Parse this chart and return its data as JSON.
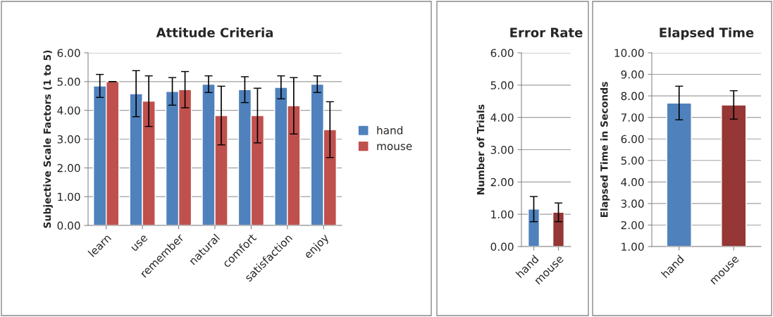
{
  "chart_data": [
    {
      "type": "bar",
      "title": "Attitude Criteria",
      "ylabel": "Subjective Scale Factors (1 to 5)",
      "categories": [
        "learn",
        "use",
        "remember",
        "natural",
        "comfort",
        "satisfaction",
        "enjoy"
      ],
      "series": [
        {
          "name": "hand",
          "color": "#4f81bd",
          "values": [
            4.85,
            4.58,
            4.66,
            4.91,
            4.72,
            4.8,
            4.91
          ],
          "errors": [
            0.4,
            0.8,
            0.48,
            0.29,
            0.45,
            0.4,
            0.29
          ]
        },
        {
          "name": "mouse",
          "color": "#c0504d",
          "values": [
            5.0,
            4.32,
            4.72,
            3.82,
            3.82,
            4.16,
            3.33
          ],
          "errors": [
            0.0,
            0.88,
            0.63,
            1.02,
            0.95,
            0.98,
            0.97
          ]
        }
      ],
      "ylim": [
        0,
        6
      ],
      "yticks": [
        {
          "value": 0,
          "label": "0.00"
        },
        {
          "value": 1,
          "label": "1.00"
        },
        {
          "value": 2,
          "label": "2.00"
        },
        {
          "value": 3,
          "label": "3.00"
        },
        {
          "value": 4,
          "label": "4.00"
        },
        {
          "value": 5,
          "label": "5.00"
        },
        {
          "value": 6,
          "label": "6.00"
        }
      ],
      "grid": "y",
      "legend": "right"
    },
    {
      "type": "bar",
      "title": "Error Rate",
      "ylabel": "Number of Trials",
      "categories": [
        "hand",
        "mouse"
      ],
      "series": [
        {
          "colors": [
            "#4f81bd",
            "#953735"
          ],
          "values": [
            1.16,
            1.06
          ],
          "errors": [
            0.39,
            0.29
          ]
        }
      ],
      "ylim": [
        0,
        6
      ],
      "yticks": [
        {
          "value": 0,
          "label": "0.00"
        },
        {
          "value": 1,
          "label": "1.00"
        },
        {
          "value": 2,
          "label": "2.00"
        },
        {
          "value": 3,
          "label": "3.00"
        },
        {
          "value": 4,
          "label": "4.00"
        },
        {
          "value": 5,
          "label": "5.00"
        },
        {
          "value": 6,
          "label": "6.00"
        }
      ],
      "grid": "y"
    },
    {
      "type": "bar",
      "title": "Elapsed Time",
      "ylabel": "Elapsed Time in Seconds",
      "categories": [
        "hand",
        "mouse"
      ],
      "series": [
        {
          "colors": [
            "#4f81bd",
            "#953735"
          ],
          "values": [
            7.67,
            7.58
          ],
          "errors": [
            0.78,
            0.66
          ]
        }
      ],
      "ylim": [
        1,
        10
      ],
      "yticks": [
        {
          "value": 1,
          "label": "1.00"
        },
        {
          "value": 2,
          "label": "2.00"
        },
        {
          "value": 3,
          "label": "3.00"
        },
        {
          "value": 4,
          "label": "4.00"
        },
        {
          "value": 5,
          "label": "5.00"
        },
        {
          "value": 6,
          "label": "6.00"
        },
        {
          "value": 7,
          "label": "7.00"
        },
        {
          "value": 8,
          "label": "8.00"
        },
        {
          "value": 9,
          "label": "9.00"
        },
        {
          "value": 10,
          "label": "10.00"
        }
      ],
      "grid": "y"
    }
  ]
}
